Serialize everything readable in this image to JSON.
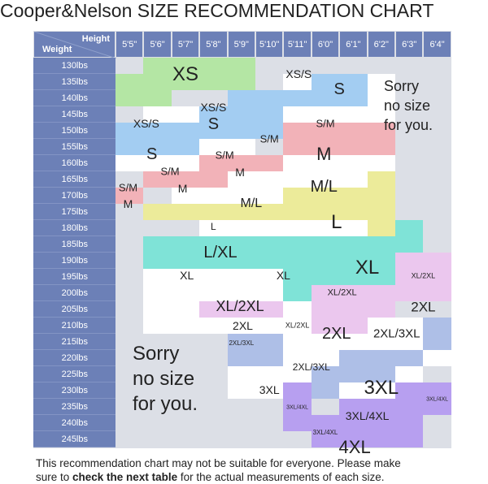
{
  "title": "Cooper&Nelson SIZE RECOMMENDATION CHART",
  "corner": {
    "height_label": "Height",
    "weight_label": "Weight"
  },
  "heights": [
    "5'5\"",
    "5'6\"",
    "5'7\"",
    "5'8\"",
    "5'9\"",
    "5'10\"",
    "5'11\"",
    "6'0\"",
    "6'1\"",
    "6'2\"",
    "6'3\"",
    "6'4\""
  ],
  "weights": [
    "130lbs",
    "135lbs",
    "140lbs",
    "145lbs",
    "150lbs",
    "155lbs",
    "160lbs",
    "165lbs",
    "170lbs",
    "175lbs",
    "180lbs",
    "185lbs",
    "190lbs",
    "195lbs",
    "200lbs",
    "205lbs",
    "210lbs",
    "215lbs",
    "220lbs",
    "225lbs",
    "230lbs",
    "235lbs",
    "240lbs",
    "245lbs"
  ],
  "colors": {
    "header": "#6c80b7",
    "background": "#dcdfe6",
    "white": "#ffffff",
    "XS": "#b4e6a4",
    "S": "#a3cdf2",
    "M": "#f2b2b8",
    "L": "#eceb9a",
    "XL": "#7fe3d7",
    "2XL": "#ebc7ee",
    "3XL": "#aebfe7",
    "4XL": "#b79ff0"
  },
  "size_labels": {
    "xs": "XS",
    "xs_s": "XS/S",
    "s": "S",
    "s_m": "S/M",
    "m": "M",
    "m_l": "M/L",
    "l": "L",
    "l_xl": "L/XL",
    "xl": "XL",
    "xl_2xl": "XL/2XL",
    "xxl": "2XL",
    "xxl_3xl": "2XL/3XL",
    "xxxl": "3XL",
    "xxxl_4xl": "3XL/4XL",
    "xxxxl": "4XL"
  },
  "sorry_top": [
    "Sorry",
    "no size",
    "for you."
  ],
  "sorry_bottom": [
    "Sorry",
    "no size",
    "for you."
  ],
  "footer": {
    "line1": "This recommendation chart may not be suitable for everyone. Please make",
    "line2_pre": "sure to ",
    "line2_bold": "check the next table",
    "line2_post": " for the actual measurements of each size."
  }
}
